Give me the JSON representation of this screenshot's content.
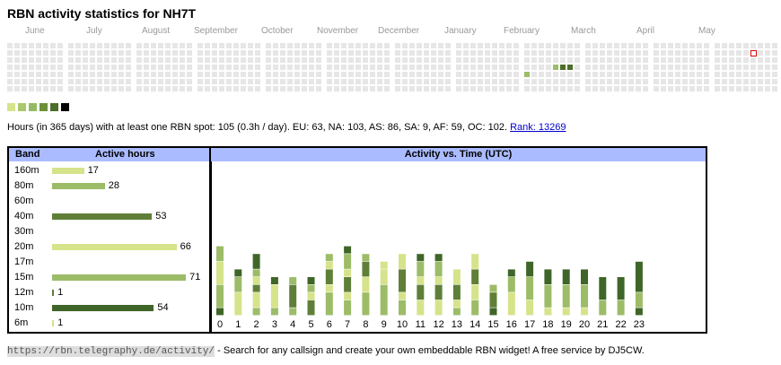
{
  "title": "RBN activity statistics for NH7T",
  "months": [
    "June",
    "July",
    "August",
    "September",
    "October",
    "November",
    "December",
    "January",
    "February",
    "March",
    "April",
    "May"
  ],
  "legend_colors": [
    "#d6e38a",
    "#a9c86b",
    "#93bb65",
    "#6c8f3a",
    "#4d6e2a",
    "#000000"
  ],
  "summary": {
    "text": "Hours (in 365 days) with at least one RBN spot: 105 (0.3h / day). EU: 63, NA: 103, AS: 86, SA: 9, AF: 59, OC: 102.",
    "rank_link": "Rank: 13269"
  },
  "bands": {
    "header_band": "Band",
    "header_hours": "Active hours",
    "rows": [
      {
        "band": "160m",
        "hours": 17,
        "color": "#d6e38a"
      },
      {
        "band": "80m",
        "hours": 28,
        "color": "#9cbc68"
      },
      {
        "band": "60m",
        "hours": 0,
        "color": "#9cbc68"
      },
      {
        "band": "40m",
        "hours": 53,
        "color": "#5f7f38"
      },
      {
        "band": "30m",
        "hours": 0,
        "color": "#5f7f38"
      },
      {
        "band": "20m",
        "hours": 66,
        "color": "#d6e38a"
      },
      {
        "band": "17m",
        "hours": 0,
        "color": "#d6e38a"
      },
      {
        "band": "15m",
        "hours": 71,
        "color": "#9cbc68"
      },
      {
        "band": "12m",
        "hours": 1,
        "color": "#5f7f38"
      },
      {
        "band": "10m",
        "hours": 54,
        "color": "#3f6628"
      },
      {
        "band": "6m",
        "hours": 1,
        "color": "#d6e38a"
      }
    ]
  },
  "chart_data": {
    "type": "bar",
    "title": "Activity vs. Time (UTC)",
    "categories": [
      "0",
      "1",
      "2",
      "3",
      "4",
      "5",
      "6",
      "7",
      "8",
      "9",
      "10",
      "11",
      "12",
      "13",
      "14",
      "15",
      "16",
      "17",
      "18",
      "19",
      "20",
      "21",
      "22",
      "23"
    ],
    "stacked": true,
    "segment_colors": [
      "#3f6628",
      "#9cbc68",
      "#d6e38a",
      "#5f7f38",
      "#d6e38a",
      "#9cbc68",
      "#3f6628"
    ],
    "segments": [
      [
        1,
        3,
        3,
        0,
        0,
        2,
        0
      ],
      [
        0,
        0,
        0,
        0,
        3,
        2,
        1
      ],
      [
        0,
        1,
        2,
        1,
        1,
        1,
        2
      ],
      [
        0,
        1,
        3,
        0,
        0,
        0,
        1
      ],
      [
        0,
        1,
        0,
        3,
        0,
        1,
        0
      ],
      [
        0,
        0,
        0,
        2,
        1,
        1,
        1
      ],
      [
        0,
        3,
        1,
        2,
        1,
        1,
        0
      ],
      [
        0,
        2,
        1,
        2,
        1,
        2,
        1
      ],
      [
        0,
        3,
        2,
        2,
        0,
        1,
        0
      ],
      [
        0,
        4,
        2,
        0,
        1,
        0,
        0
      ],
      [
        0,
        2,
        1,
        3,
        2,
        0,
        0
      ],
      [
        0,
        0,
        2,
        2,
        1,
        2,
        1
      ],
      [
        0,
        0,
        2,
        2,
        1,
        2,
        1
      ],
      [
        0,
        1,
        1,
        2,
        2,
        0,
        0
      ],
      [
        0,
        2,
        2,
        2,
        2,
        0,
        0
      ],
      [
        1,
        0,
        0,
        2,
        0,
        1,
        0
      ],
      [
        0,
        0,
        0,
        0,
        3,
        2,
        1
      ],
      [
        0,
        0,
        0,
        0,
        2,
        3,
        2
      ],
      [
        0,
        0,
        0,
        0,
        1,
        3,
        2
      ],
      [
        0,
        0,
        0,
        0,
        1,
        3,
        2
      ],
      [
        0,
        0,
        0,
        0,
        1,
        3,
        2
      ],
      [
        0,
        0,
        0,
        0,
        0,
        2,
        3
      ],
      [
        0,
        0,
        0,
        0,
        0,
        2,
        3
      ],
      [
        1,
        2,
        0,
        0,
        0,
        0,
        4
      ]
    ]
  },
  "footer": {
    "url": "https://rbn.telegraphy.de/activity/",
    "text": " - Search for any callsign and create your own embeddable RBN widget! A free service by DJ5CW."
  }
}
